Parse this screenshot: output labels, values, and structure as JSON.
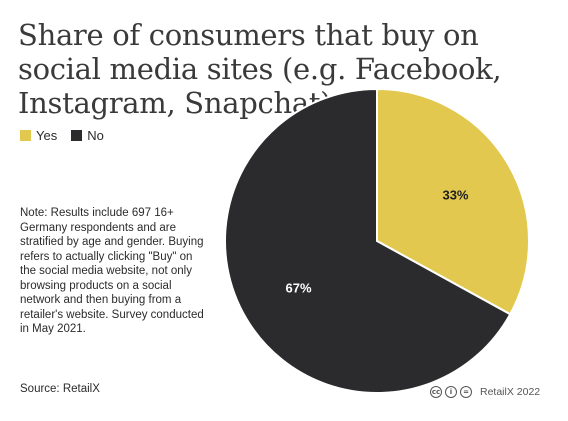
{
  "title": "Share of consumers that buy on social media sites (e.g. Facebook, Instagram, Snapchat)",
  "note": "Note: Results include 697 16+ Germany respondents and are stratified by age and gender. Buying refers to actually clicking \"Buy\" on the social media website, not only browsing products on a social network and then buying from a retailer's website. Survey conducted in May 2021.",
  "source": "Source: RetailX",
  "credit": {
    "icons": [
      "cc-icon",
      "attribution-icon",
      "noderivs-icon"
    ],
    "text": "RetailX 2022"
  },
  "colors": {
    "yes": "#e2c84e",
    "no": "#2b2b2e",
    "text": "#2b2b2b"
  },
  "chart_data": {
    "type": "pie",
    "categories": [
      "Yes",
      "No"
    ],
    "values": [
      33,
      67
    ],
    "labels": [
      "33%",
      "67%"
    ],
    "legend": "top-left",
    "title": "Share of consumers that buy on social media sites (e.g. Facebook, Instagram, Snapchat)"
  }
}
